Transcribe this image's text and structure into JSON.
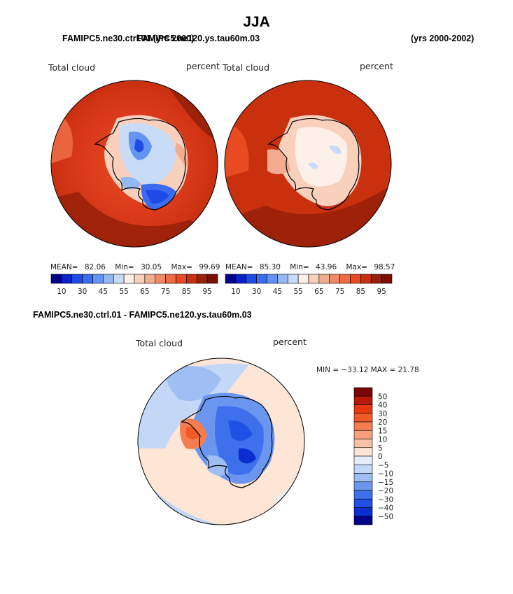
{
  "season_title": "JJA",
  "panel_left": {
    "header": "FAMIPC5.ne30.ctrl.01 (yrs 2000)",
    "variable": "Total cloud",
    "units": "percent",
    "stats": {
      "mean_label": "MEAN=",
      "mean": "82.06",
      "min_label": "Min=",
      "min": "30.05",
      "max_label": "Max=",
      "max": "99.69"
    }
  },
  "panel_right": {
    "header": "FAMIPC5.ne120.ys.tau60m.03",
    "years": "(yrs 2000-2002)",
    "variable": "Total cloud",
    "units": "percent",
    "stats": {
      "mean_label": "MEAN=",
      "mean": "85.30",
      "min_label": "Min=",
      "min": "43.96",
      "max_label": "Max=",
      "max": "98.57"
    }
  },
  "panel_diff": {
    "header": "FAMIPC5.ne30.ctrl.01 - FAMIPC5.ne120.ys.tau60m.03",
    "variable": "Total cloud",
    "units": "percent",
    "minmax": "MIN = −33.12 MAX =  21.78"
  },
  "colorbar_abs": {
    "colors": [
      "#00008b",
      "#0a21c8",
      "#1e4be6",
      "#3a6cf0",
      "#6593f2",
      "#94b8f4",
      "#c8dcf8",
      "#fdf0e8",
      "#f8d0bc",
      "#f4ac90",
      "#f08a68",
      "#ec6a44",
      "#e84a22",
      "#c8300e",
      "#962008",
      "#7a1004"
    ],
    "tick_labels": [
      "10",
      "30",
      "45",
      "55",
      "65",
      "75",
      "85",
      "95"
    ]
  },
  "colorbar_diff": {
    "colors": [
      "#7a0606",
      "#b61a06",
      "#e63a0e",
      "#f05a2a",
      "#f47e52",
      "#f6a07c",
      "#f8c2a6",
      "#fde6d6",
      "#e4eefa",
      "#c2d8f6",
      "#9ebef4",
      "#6a96f0",
      "#3e70ec",
      "#2050e4",
      "#0a2ed0",
      "#00008b"
    ],
    "tick_labels": [
      "50",
      "40",
      "30",
      "20",
      "15",
      "10",
      "5",
      "0",
      "−5",
      "−10",
      "−15",
      "−20",
      "−30",
      "−40",
      "−50"
    ]
  },
  "chart_data": [
    {
      "type": "heatmap",
      "subtype": "south polar stereographic contour map",
      "title": "FAMIPC5.ne30.ctrl.01 (yrs 2000)",
      "variable": "Total cloud",
      "units": "percent",
      "stats": {
        "mean": 82.06,
        "min": 30.05,
        "max": 99.69
      },
      "levels": [
        10,
        30,
        45,
        55,
        65,
        75,
        85,
        95
      ]
    },
    {
      "type": "heatmap",
      "subtype": "south polar stereographic contour map",
      "title": "FAMIPC5.ne120.ys.tau60m.03 (yrs 2000-2002)",
      "variable": "Total cloud",
      "units": "percent",
      "stats": {
        "mean": 85.3,
        "min": 43.96,
        "max": 98.57
      },
      "levels": [
        10,
        30,
        45,
        55,
        65,
        75,
        85,
        95
      ]
    },
    {
      "type": "heatmap",
      "subtype": "south polar stereographic difference map",
      "title": "FAMIPC5.ne30.ctrl.01 - FAMIPC5.ne120.ys.tau60m.03",
      "variable": "Total cloud",
      "units": "percent",
      "stats": {
        "min": -33.12,
        "max": 21.78
      },
      "levels": [
        -50,
        -40,
        -30,
        -20,
        -15,
        -10,
        -5,
        0,
        5,
        10,
        15,
        20,
        30,
        40,
        50
      ]
    }
  ]
}
